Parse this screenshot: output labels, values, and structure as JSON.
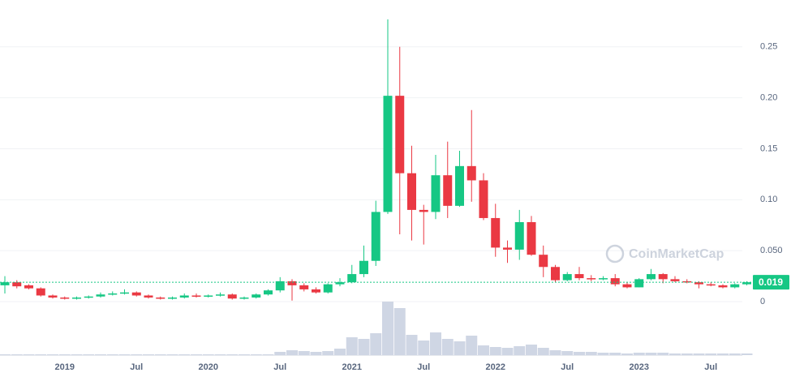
{
  "chart_data": {
    "type": "candlestick",
    "x": [
      "2018-08",
      "2018-09",
      "2018-10",
      "2018-11",
      "2018-12",
      "2019-01",
      "2019-02",
      "2019-03",
      "2019-04",
      "2019-05",
      "2019-06",
      "2019-07",
      "2019-08",
      "2019-09",
      "2019-10",
      "2019-11",
      "2019-12",
      "2020-01",
      "2020-02",
      "2020-03",
      "2020-04",
      "2020-05",
      "2020-06",
      "2020-07",
      "2020-08",
      "2020-09",
      "2020-10",
      "2020-11",
      "2020-12",
      "2021-01",
      "2021-02",
      "2021-03",
      "2021-04",
      "2021-05",
      "2021-06",
      "2021-07",
      "2021-08",
      "2021-09",
      "2021-10",
      "2021-11",
      "2021-12",
      "2022-01",
      "2022-02",
      "2022-03",
      "2022-04",
      "2022-05",
      "2022-06",
      "2022-07",
      "2022-08",
      "2022-09",
      "2022-10",
      "2022-11",
      "2022-12",
      "2023-01",
      "2023-02",
      "2023-03",
      "2023-04",
      "2023-05",
      "2023-06",
      "2023-07",
      "2023-08",
      "2023-09",
      "2023-10"
    ],
    "open": [
      0.016,
      0.019,
      0.016,
      0.013,
      0.006,
      0.004,
      0.003,
      0.004,
      0.005,
      0.007,
      0.008,
      0.009,
      0.006,
      0.004,
      0.003,
      0.004,
      0.006,
      0.005,
      0.006,
      0.007,
      0.003,
      0.004,
      0.007,
      0.011,
      0.02,
      0.016,
      0.012,
      0.009,
      0.017,
      0.019,
      0.027,
      0.04,
      0.088,
      0.202,
      0.126,
      0.09,
      0.088,
      0.124,
      0.094,
      0.133,
      0.119,
      0.082,
      0.053,
      0.051,
      0.078,
      0.046,
      0.034,
      0.021,
      0.027,
      0.023,
      0.022,
      0.023,
      0.017,
      0.014,
      0.022,
      0.027,
      0.022,
      0.02,
      0.019,
      0.017,
      0.016,
      0.014,
      0.017
    ],
    "high": [
      0.025,
      0.021,
      0.017,
      0.014,
      0.007,
      0.005,
      0.005,
      0.006,
      0.009,
      0.01,
      0.012,
      0.01,
      0.007,
      0.005,
      0.005,
      0.008,
      0.008,
      0.007,
      0.009,
      0.008,
      0.005,
      0.008,
      0.012,
      0.024,
      0.022,
      0.018,
      0.014,
      0.018,
      0.023,
      0.036,
      0.055,
      0.099,
      0.277,
      0.25,
      0.153,
      0.095,
      0.144,
      0.157,
      0.148,
      0.188,
      0.126,
      0.096,
      0.06,
      0.09,
      0.084,
      0.055,
      0.036,
      0.029,
      0.034,
      0.026,
      0.025,
      0.027,
      0.019,
      0.023,
      0.032,
      0.028,
      0.025,
      0.022,
      0.02,
      0.019,
      0.017,
      0.018,
      0.02
    ],
    "low": [
      0.008,
      0.013,
      0.012,
      0.005,
      0.003,
      0.002,
      0.002,
      0.003,
      0.004,
      0.006,
      0.007,
      0.005,
      0.003,
      0.002,
      0.002,
      0.003,
      0.004,
      0.004,
      0.005,
      0.002,
      0.002,
      0.003,
      0.006,
      0.009,
      0.001,
      0.01,
      0.008,
      0.008,
      0.015,
      0.018,
      0.024,
      0.035,
      0.086,
      0.066,
      0.06,
      0.056,
      0.081,
      0.082,
      0.093,
      0.098,
      0.08,
      0.044,
      0.038,
      0.041,
      0.045,
      0.024,
      0.019,
      0.02,
      0.021,
      0.02,
      0.021,
      0.015,
      0.013,
      0.014,
      0.021,
      0.018,
      0.019,
      0.018,
      0.013,
      0.015,
      0.013,
      0.013,
      0.016
    ],
    "close": [
      0.019,
      0.015,
      0.013,
      0.006,
      0.004,
      0.003,
      0.004,
      0.005,
      0.007,
      0.008,
      0.009,
      0.006,
      0.004,
      0.003,
      0.004,
      0.006,
      0.005,
      0.006,
      0.007,
      0.003,
      0.004,
      0.007,
      0.011,
      0.02,
      0.016,
      0.012,
      0.009,
      0.017,
      0.019,
      0.027,
      0.04,
      0.088,
      0.202,
      0.126,
      0.09,
      0.088,
      0.124,
      0.094,
      0.133,
      0.119,
      0.082,
      0.053,
      0.051,
      0.078,
      0.046,
      0.034,
      0.021,
      0.027,
      0.023,
      0.022,
      0.023,
      0.017,
      0.014,
      0.022,
      0.027,
      0.022,
      0.02,
      0.019,
      0.017,
      0.016,
      0.014,
      0.017,
      0.019
    ],
    "volume": [
      1,
      1,
      1,
      1,
      1,
      1,
      1,
      1,
      1,
      1,
      1,
      1,
      1,
      1,
      1,
      1,
      1,
      1,
      1,
      1,
      1,
      1,
      1,
      4,
      6,
      5,
      4,
      5,
      8,
      22,
      20,
      27,
      66,
      58,
      25,
      18,
      28,
      20,
      17,
      24,
      12,
      10,
      9,
      11,
      13,
      9,
      6,
      5,
      4,
      4,
      3,
      3,
      2,
      3,
      3,
      3,
      2,
      2,
      2,
      2,
      2,
      2,
      2
    ],
    "up_color": "#16c784",
    "down_color": "#ea3943",
    "volume_color": "#cfd6e4",
    "ylim": [
      0,
      0.296
    ],
    "yticks": [
      0,
      {
        "value": 0.05,
        "label": "0.050"
      },
      {
        "value": 0.1,
        "label": "0.10"
      },
      0.15,
      {
        "value": 0.2,
        "label": "0.20"
      },
      0.25
    ],
    "xticks": [
      {
        "value": "2019-01",
        "label": "2019"
      },
      {
        "value": "2019-07",
        "label": "Jul"
      },
      {
        "value": "2020-01",
        "label": "2020"
      },
      {
        "value": "2020-07",
        "label": "Jul"
      },
      {
        "value": "2021-01",
        "label": "2021"
      },
      {
        "value": "2021-07",
        "label": "Jul"
      },
      {
        "value": "2022-01",
        "label": "2022"
      },
      {
        "value": "2022-07",
        "label": "Jul"
      },
      {
        "value": "2023-01",
        "label": "2023"
      },
      {
        "value": "2023-07",
        "label": "Jul"
      }
    ],
    "last_price": 0.019,
    "grid": true,
    "watermark": "CoinMarketCap"
  }
}
